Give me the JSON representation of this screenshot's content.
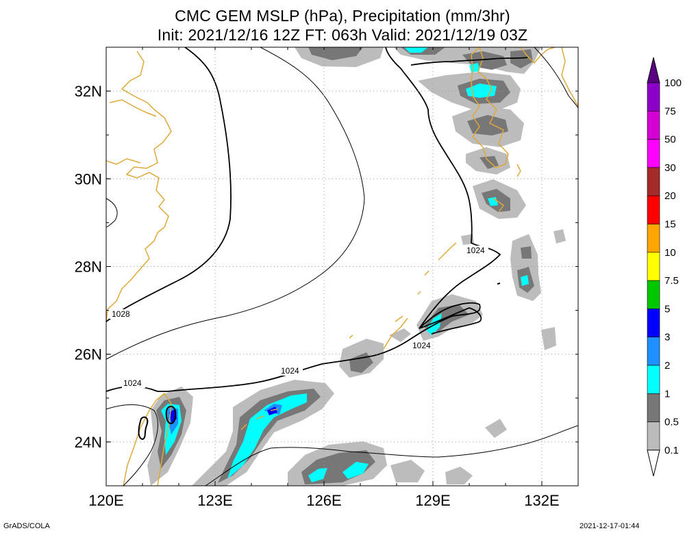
{
  "title": {
    "line1": "CMC GEM MSLP (hPa), Precipitation (mm/3hr)",
    "line2": "Init: 2021/12/16 12Z  FT: 063h  Valid: 2021/12/19 03Z"
  },
  "map": {
    "lon_range": [
      120,
      133
    ],
    "lat_range": [
      23,
      33
    ],
    "lon_ticks": [
      "120E",
      "123E",
      "126E",
      "129E",
      "132E"
    ],
    "lat_ticks": [
      "24N",
      "26N",
      "28N",
      "30N",
      "32N"
    ],
    "grid": true,
    "coastline_color": "#e0a838",
    "isobar_labels": [
      "1028",
      "1024",
      "1024",
      "1024",
      "1024"
    ]
  },
  "colorbar": {
    "labels": [
      "100",
      "75",
      "50",
      "30",
      "20",
      "15",
      "10",
      "7.5",
      "5",
      "3",
      "2",
      "1",
      "0.5",
      "0.1"
    ],
    "colors": [
      "#8c00c8",
      "#d200d2",
      "#ff00ff",
      "#a52a2a",
      "#ff0000",
      "#ffa500",
      "#ffff00",
      "#00c800",
      "#0000ff",
      "#1e90ff",
      "#00ffff",
      "#777777",
      "#bbbbbb"
    ],
    "top_color": "#5a0082"
  },
  "precip_colors": {
    "p01": "#bcbcbc",
    "p05": "#777777",
    "p1": "#00ffff",
    "p2": "#1e90ff",
    "p3": "#0000ff"
  },
  "footer": {
    "left": "GrADS/COLA",
    "right": "2021-12-17-01:44"
  }
}
